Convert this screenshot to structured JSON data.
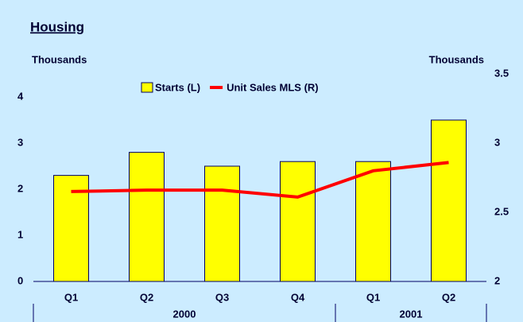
{
  "chart_data": {
    "type": "bar_line",
    "title": "Housing",
    "y_label": "Thousands",
    "y2_label": "Thousands",
    "categories": [
      "Q1",
      "Q2",
      "Q3",
      "Q4",
      "Q1",
      "Q2"
    ],
    "groups": [
      "2000",
      "2000",
      "2000",
      "2000",
      "2001",
      "2001"
    ],
    "series": [
      {
        "name": "Starts (L)",
        "type": "bar",
        "color": "#ffff00",
        "values": [
          2.3,
          2.8,
          2.5,
          2.6,
          2.6,
          3.5
        ]
      },
      {
        "name": "Unit Sales MLS (R)",
        "type": "line",
        "axis": "y2",
        "color": "#ff0000",
        "values": [
          2.65,
          2.66,
          2.66,
          2.61,
          2.8,
          2.86
        ]
      }
    ],
    "ylim": [
      0,
      4.5
    ],
    "yticks": [
      0,
      1,
      2,
      3,
      4
    ],
    "y2lim": [
      2,
      3.5
    ],
    "y2ticks": [
      2,
      2.5,
      3,
      3.5
    ]
  }
}
